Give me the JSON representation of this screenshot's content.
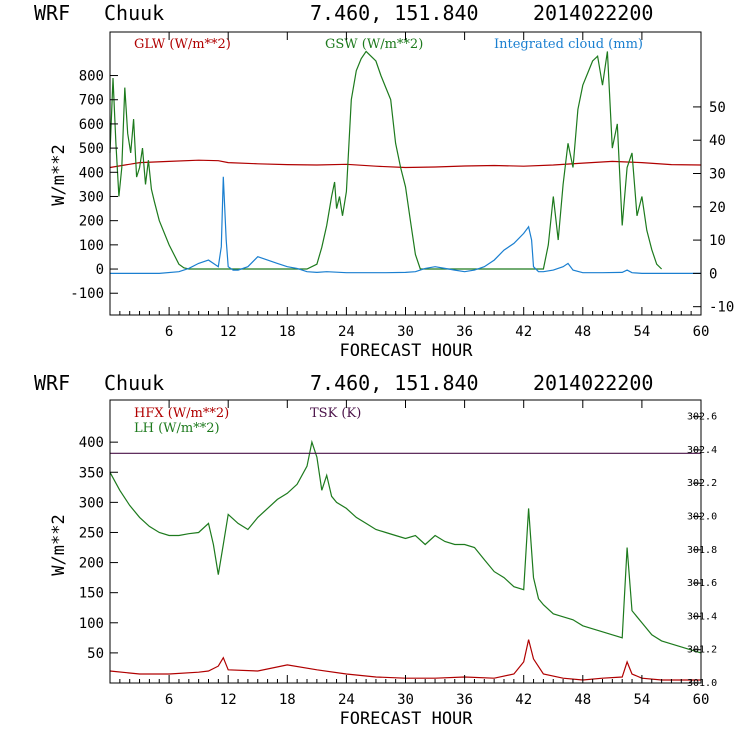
{
  "header": {
    "model": "WRF",
    "station": "Chuuk",
    "coords": "7.460, 151.840",
    "init": "2014022200"
  },
  "colors": {
    "red": "#b00000",
    "green": "#1d7a1d",
    "blue": "#1a7fd0",
    "purple": "#4a1248",
    "axis": "#000000"
  },
  "chart_data": [
    {
      "type": "line",
      "title": "WRF Chuuk 7.460, 151.840 2014022200",
      "xlabel": "FORECAST HOUR",
      "ylabel": "W/m**2",
      "y2label": "",
      "xlim": [
        0,
        60
      ],
      "ylim": [
        -190,
        980
      ],
      "y2lim": [
        -12.5,
        72.5
      ],
      "xticks": [
        6,
        12,
        18,
        24,
        30,
        36,
        42,
        48,
        54,
        60
      ],
      "yticks": [
        -100,
        0,
        100,
        200,
        300,
        400,
        500,
        600,
        700,
        800
      ],
      "y2ticks": [
        -10,
        0,
        10,
        20,
        30,
        40,
        50
      ],
      "series": [
        {
          "name": "GLW (W/m**2)",
          "color": "#b00000",
          "axis": "left",
          "x": [
            0,
            3,
            6,
            9,
            11,
            12,
            15,
            18,
            21,
            24,
            27,
            30,
            33,
            36,
            39,
            42,
            45,
            48,
            51,
            54,
            57,
            60
          ],
          "y": [
            420,
            440,
            445,
            450,
            448,
            440,
            435,
            432,
            430,
            433,
            425,
            420,
            422,
            426,
            428,
            425,
            430,
            438,
            445,
            440,
            432,
            430
          ]
        },
        {
          "name": "GSW (W/m**2)",
          "color": "#1d7a1d",
          "axis": "left",
          "x": [
            0,
            0.3,
            0.6,
            0.9,
            1.2,
            1.5,
            1.8,
            2.1,
            2.4,
            2.7,
            3.0,
            3.3,
            3.6,
            3.9,
            4.2,
            4.5,
            5.0,
            6.0,
            7.0,
            7.5,
            8.0,
            20.0,
            21.0,
            21.5,
            22.0,
            22.5,
            22.8,
            23.0,
            23.3,
            23.6,
            24.0,
            24.5,
            25.0,
            25.5,
            26.0,
            26.5,
            27.0,
            27.5,
            28.0,
            28.5,
            29.0,
            29.5,
            30.0,
            30.5,
            31.0,
            31.5,
            44.0,
            44.5,
            45.0,
            45.5,
            46.0,
            46.5,
            47.0,
            47.5,
            48.0,
            48.5,
            49.0,
            49.5,
            50.0,
            50.5,
            51.0,
            51.5,
            52.0,
            52.5,
            53.0,
            53.5,
            54.0,
            54.5,
            55.0,
            55.5,
            56.0
          ],
          "y": [
            480,
            790,
            520,
            300,
            420,
            750,
            560,
            480,
            620,
            380,
            420,
            500,
            350,
            450,
            330,
            280,
            200,
            100,
            20,
            5,
            0,
            0,
            20,
            90,
            180,
            300,
            360,
            250,
            300,
            220,
            320,
            700,
            820,
            870,
            900,
            880,
            860,
            800,
            750,
            700,
            520,
            420,
            340,
            200,
            60,
            0,
            0,
            100,
            300,
            120,
            350,
            520,
            420,
            660,
            760,
            810,
            860,
            880,
            760,
            900,
            500,
            600,
            180,
            420,
            480,
            220,
            300,
            160,
            80,
            20,
            0
          ]
        },
        {
          "name": "Integrated cloud (mm)",
          "color": "#1a7fd0",
          "axis": "right",
          "x": [
            0,
            5,
            7,
            8,
            9,
            10,
            10.5,
            11,
            11.3,
            11.5,
            11.8,
            12,
            12.5,
            13,
            14,
            15,
            16,
            17,
            18,
            19,
            20,
            21,
            22,
            24,
            26,
            28,
            30,
            31,
            32,
            33,
            34,
            35,
            36,
            37,
            38,
            39,
            40,
            41,
            42,
            42.5,
            42.8,
            43,
            43.5,
            44,
            45,
            46,
            46.5,
            47,
            48,
            50,
            52,
            52.5,
            53,
            54,
            56,
            58,
            60
          ],
          "y": [
            0,
            0,
            0.5,
            1.5,
            3,
            4,
            3,
            2,
            8,
            29,
            10,
            2,
            1,
            1,
            2,
            5,
            4,
            3,
            2,
            1.5,
            0.5,
            0.3,
            0.5,
            0.2,
            0.2,
            0.2,
            0.3,
            0.5,
            1.5,
            2,
            1.5,
            1,
            0.5,
            1,
            2,
            4,
            7,
            9,
            12,
            14,
            10,
            2,
            0.5,
            0.5,
            1,
            2,
            3,
            1,
            0.2,
            0.2,
            0.3,
            1,
            0.2,
            0,
            0,
            0,
            0
          ]
        }
      ]
    },
    {
      "type": "line",
      "title": "WRF Chuuk 7.460, 151.840 2014022200",
      "xlabel": "FORECAST HOUR",
      "ylabel": "W/m**2",
      "xlim": [
        0,
        60
      ],
      "ylim": [
        0,
        470
      ],
      "y2lim": [
        301.0,
        302.7
      ],
      "xticks": [
        6,
        12,
        18,
        24,
        30,
        36,
        42,
        48,
        54,
        60
      ],
      "yticks": [
        50,
        100,
        150,
        200,
        250,
        300,
        350,
        400
      ],
      "y2ticks": [
        301.0,
        301.2,
        301.4,
        301.6,
        301.8,
        302.0,
        302.2,
        302.4,
        302.6
      ],
      "y2ticklabels": [
        "301.0",
        "301.2",
        "301.4",
        "301.6",
        "301.8",
        "302.0",
        "302.2",
        "302.4",
        "302.6"
      ],
      "series": [
        {
          "name": "HFX (W/m**2)",
          "color": "#b00000",
          "axis": "left",
          "x": [
            0,
            3,
            6,
            9,
            10,
            11,
            11.5,
            12,
            15,
            18,
            21,
            24,
            27,
            30,
            33,
            36,
            39,
            41,
            42,
            42.5,
            43,
            44,
            46,
            48,
            50,
            52,
            52.5,
            53,
            54,
            56,
            60
          ],
          "y": [
            20,
            15,
            15,
            18,
            20,
            28,
            42,
            22,
            20,
            30,
            22,
            15,
            10,
            8,
            8,
            10,
            8,
            15,
            35,
            72,
            40,
            15,
            8,
            5,
            8,
            10,
            35,
            15,
            8,
            5,
            5
          ]
        },
        {
          "name": "LH (W/m**2)",
          "color": "#1d7a1d",
          "axis": "left",
          "x": [
            0,
            1,
            2,
            3,
            4,
            5,
            6,
            7,
            8,
            9,
            10,
            10.5,
            11,
            11.5,
            12,
            13,
            14,
            15,
            16,
            17,
            18,
            19,
            20,
            20.5,
            21,
            21.5,
            22,
            22.5,
            23,
            24,
            25,
            26,
            27,
            28,
            29,
            30,
            31,
            32,
            33,
            34,
            35,
            36,
            37,
            38,
            39,
            40,
            41,
            42,
            42.5,
            43,
            43.5,
            44,
            45,
            46,
            47,
            48,
            49,
            50,
            51,
            52,
            52.5,
            53,
            54,
            55,
            56,
            57,
            58,
            59,
            60
          ],
          "y": [
            350,
            320,
            295,
            275,
            260,
            250,
            245,
            245,
            248,
            250,
            265,
            230,
            180,
            230,
            280,
            265,
            255,
            275,
            290,
            305,
            315,
            330,
            360,
            400,
            375,
            320,
            345,
            310,
            300,
            290,
            275,
            265,
            255,
            250,
            245,
            240,
            245,
            230,
            245,
            235,
            230,
            230,
            225,
            205,
            185,
            175,
            160,
            155,
            290,
            175,
            140,
            130,
            115,
            110,
            105,
            95,
            90,
            85,
            80,
            75,
            225,
            120,
            100,
            80,
            70,
            65,
            60,
            55,
            50
          ]
        },
        {
          "name": "TSK (K)",
          "color": "#4a1248",
          "axis": "right",
          "x": [
            0,
            60
          ],
          "y": [
            302.38,
            302.38
          ]
        }
      ]
    }
  ]
}
